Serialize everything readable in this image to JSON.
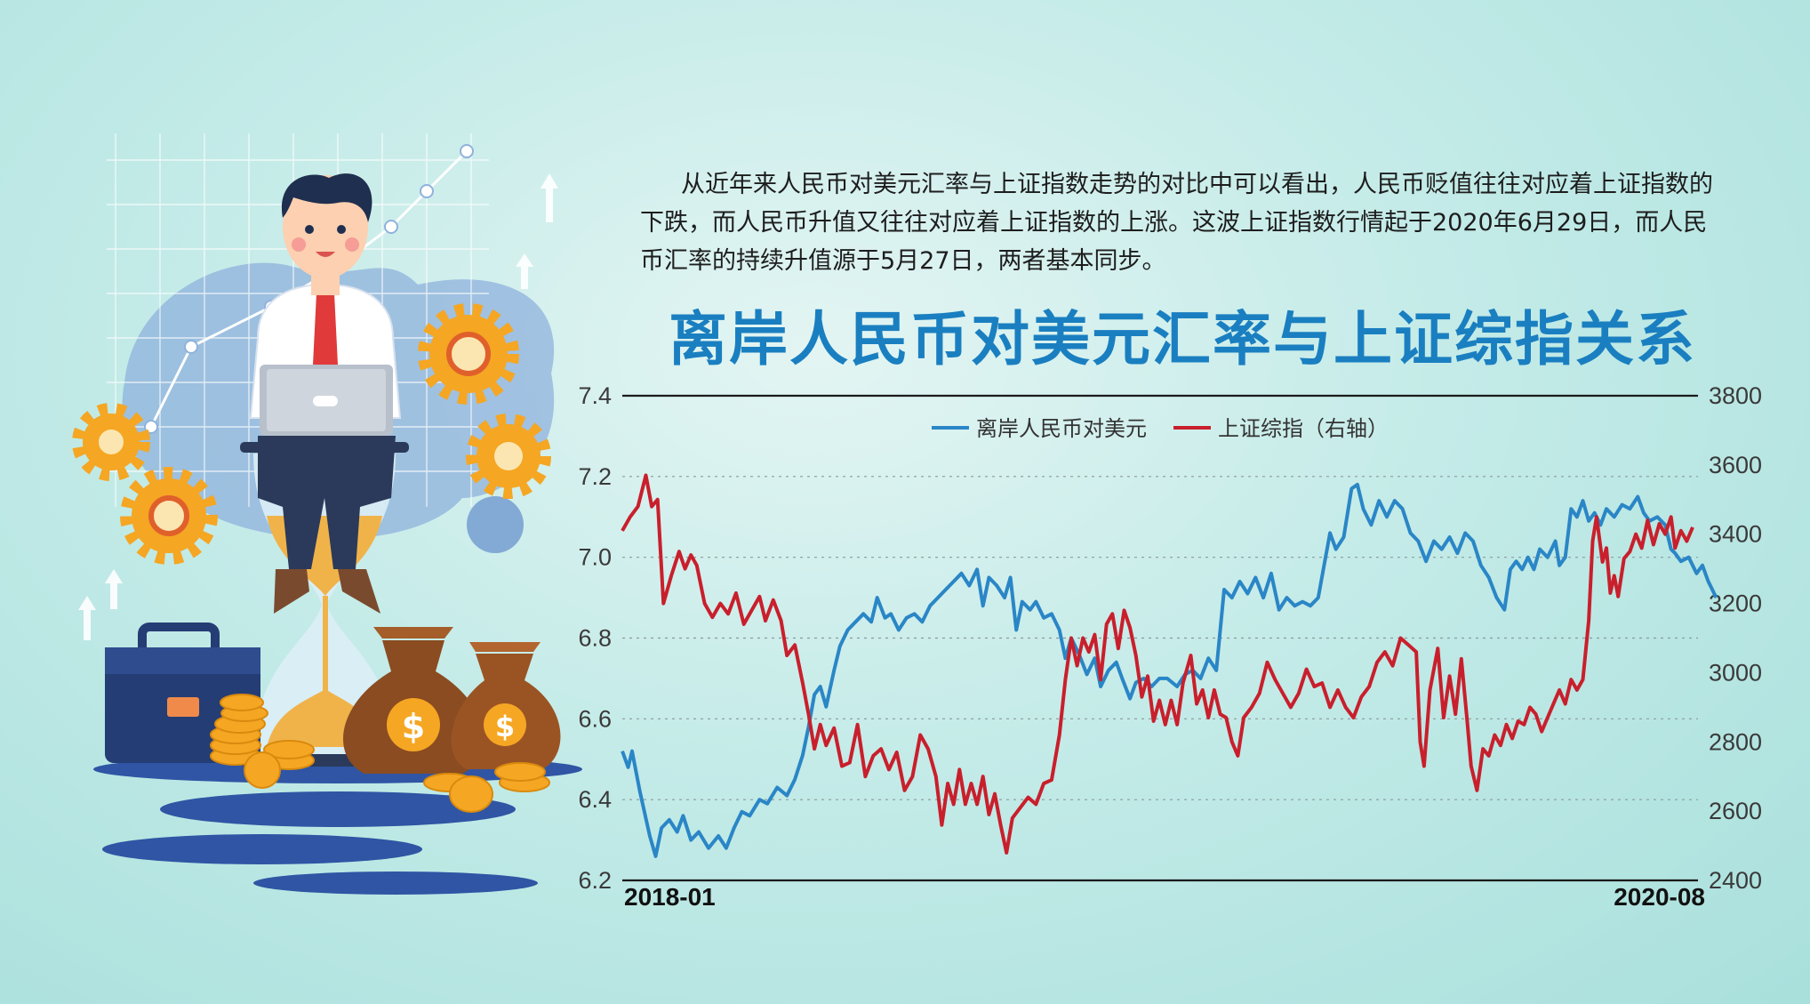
{
  "intro_text": "从近年来人民币对美元汇率与上证指数走势的对比中可以看出，人民币贬值往往对应着上证指数的下跌，而人民币升值又往往对应着上证指数的上涨。这波上证指数行情起于2020年6月29日，而人民币汇率的持续升值源于5月27日，两者基本同步。",
  "chart_data": {
    "type": "line",
    "title": "离岸人民币对美元汇率与上证综指关系",
    "x_start_label": "2018-01",
    "x_end_label": "2020-08",
    "left_axis": {
      "ticks": [
        "7.4",
        "7.2",
        "7.0",
        "6.8",
        "6.6",
        "6.4",
        "6.2"
      ],
      "range": [
        6.2,
        7.4
      ]
    },
    "right_axis": {
      "ticks": [
        "3800",
        "3600",
        "3400",
        "3200",
        "3000",
        "2800",
        "2600",
        "2400"
      ],
      "range": [
        2400,
        3800
      ]
    },
    "legend_placement": "top-center",
    "colors": {
      "cnh": "#2a86c6",
      "sse": "#c91f2c"
    },
    "series": [
      {
        "name": "离岸人民币对美元",
        "axis": "left",
        "values": [
          [
            0,
            6.52
          ],
          [
            3,
            6.48
          ],
          [
            5,
            6.52
          ],
          [
            9,
            6.42
          ],
          [
            14,
            6.31
          ],
          [
            17,
            6.26
          ],
          [
            20,
            6.33
          ],
          [
            24,
            6.35
          ],
          [
            28,
            6.32
          ],
          [
            31,
            6.36
          ],
          [
            35,
            6.3
          ],
          [
            39,
            6.32
          ],
          [
            44,
            6.28
          ],
          [
            49,
            6.31
          ],
          [
            53,
            6.28
          ],
          [
            57,
            6.33
          ],
          [
            61,
            6.37
          ],
          [
            65,
            6.36
          ],
          [
            70,
            6.4
          ],
          [
            74,
            6.39
          ],
          [
            79,
            6.43
          ],
          [
            84,
            6.41
          ],
          [
            88,
            6.45
          ],
          [
            92,
            6.51
          ],
          [
            95,
            6.58
          ],
          [
            98,
            6.66
          ],
          [
            101,
            6.68
          ],
          [
            104,
            6.63
          ],
          [
            108,
            6.72
          ],
          [
            111,
            6.78
          ],
          [
            115,
            6.82
          ],
          [
            119,
            6.84
          ],
          [
            123,
            6.86
          ],
          [
            127,
            6.84
          ],
          [
            130,
            6.9
          ],
          [
            134,
            6.85
          ],
          [
            137,
            6.86
          ],
          [
            141,
            6.82
          ],
          [
            145,
            6.85
          ],
          [
            149,
            6.86
          ],
          [
            153,
            6.84
          ],
          [
            157,
            6.88
          ],
          [
            161,
            6.9
          ],
          [
            165,
            6.92
          ],
          [
            169,
            6.94
          ],
          [
            173,
            6.96
          ],
          [
            177,
            6.93
          ],
          [
            181,
            6.97
          ],
          [
            184,
            6.88
          ],
          [
            187,
            6.95
          ],
          [
            191,
            6.93
          ],
          [
            195,
            6.9
          ],
          [
            198,
            6.95
          ],
          [
            201,
            6.82
          ],
          [
            204,
            6.89
          ],
          [
            208,
            6.87
          ],
          [
            211,
            6.89
          ],
          [
            215,
            6.85
          ],
          [
            219,
            6.86
          ],
          [
            223,
            6.82
          ],
          [
            226,
            6.75
          ],
          [
            229,
            6.8
          ],
          [
            233,
            6.76
          ],
          [
            237,
            6.71
          ],
          [
            241,
            6.75
          ],
          [
            244,
            6.68
          ],
          [
            248,
            6.72
          ],
          [
            252,
            6.74
          ],
          [
            255,
            6.7
          ],
          [
            259,
            6.65
          ],
          [
            262,
            6.69
          ],
          [
            266,
            6.7
          ],
          [
            270,
            6.68
          ],
          [
            274,
            6.7
          ],
          [
            278,
            6.7
          ],
          [
            283,
            6.68
          ],
          [
            287,
            6.71
          ],
          [
            291,
            6.72
          ],
          [
            295,
            6.7
          ],
          [
            299,
            6.75
          ],
          [
            303,
            6.72
          ],
          [
            307,
            6.92
          ],
          [
            311,
            6.9
          ],
          [
            315,
            6.94
          ],
          [
            319,
            6.91
          ],
          [
            323,
            6.95
          ],
          [
            327,
            6.9
          ],
          [
            331,
            6.96
          ],
          [
            335,
            6.87
          ],
          [
            339,
            6.9
          ],
          [
            343,
            6.88
          ],
          [
            347,
            6.89
          ],
          [
            351,
            6.88
          ],
          [
            355,
            6.9
          ],
          [
            358,
            6.98
          ],
          [
            361,
            7.06
          ],
          [
            364,
            7.02
          ],
          [
            368,
            7.05
          ],
          [
            372,
            7.17
          ],
          [
            375,
            7.18
          ],
          [
            378,
            7.12
          ],
          [
            382,
            7.08
          ],
          [
            386,
            7.14
          ],
          [
            390,
            7.1
          ],
          [
            394,
            7.14
          ],
          [
            398,
            7.12
          ],
          [
            402,
            7.06
          ],
          [
            406,
            7.04
          ],
          [
            410,
            6.99
          ],
          [
            414,
            7.04
          ],
          [
            418,
            7.02
          ],
          [
            422,
            7.05
          ],
          [
            426,
            7.01
          ],
          [
            430,
            7.06
          ],
          [
            434,
            7.04
          ],
          [
            438,
            6.98
          ],
          [
            442,
            6.95
          ],
          [
            446,
            6.9
          ],
          [
            450,
            6.87
          ],
          [
            453,
            6.97
          ],
          [
            456,
            6.99
          ],
          [
            459,
            6.97
          ],
          [
            462,
            7.0
          ],
          [
            465,
            6.97
          ],
          [
            468,
            7.02
          ],
          [
            472,
            7.0
          ],
          [
            476,
            7.04
          ],
          [
            478,
            6.98
          ],
          [
            481,
            7.0
          ],
          [
            484,
            7.12
          ],
          [
            487,
            7.1
          ],
          [
            490,
            7.14
          ],
          [
            493,
            7.09
          ],
          [
            496,
            7.11
          ],
          [
            499,
            7.08
          ],
          [
            502,
            7.12
          ],
          [
            506,
            7.1
          ],
          [
            510,
            7.13
          ],
          [
            514,
            7.12
          ],
          [
            518,
            7.15
          ],
          [
            521,
            7.11
          ],
          [
            524,
            7.09
          ],
          [
            528,
            7.1
          ],
          [
            532,
            7.08
          ],
          [
            535,
            7.02
          ],
          [
            537,
            7.01
          ],
          [
            540,
            6.99
          ],
          [
            544,
            7.0
          ],
          [
            548,
            6.96
          ],
          [
            551,
            6.98
          ],
          [
            554,
            6.94
          ],
          [
            556,
            6.92
          ],
          [
            558,
            6.9
          ]
        ]
      },
      {
        "name": "上证综指（右轴）",
        "axis": "right",
        "values": [
          [
            0,
            3410
          ],
          [
            4,
            3450
          ],
          [
            8,
            3480
          ],
          [
            12,
            3570
          ],
          [
            15,
            3480
          ],
          [
            18,
            3500
          ],
          [
            21,
            3200
          ],
          [
            25,
            3280
          ],
          [
            29,
            3350
          ],
          [
            32,
            3300
          ],
          [
            35,
            3340
          ],
          [
            38,
            3310
          ],
          [
            42,
            3200
          ],
          [
            46,
            3160
          ],
          [
            50,
            3200
          ],
          [
            54,
            3170
          ],
          [
            58,
            3230
          ],
          [
            62,
            3140
          ],
          [
            66,
            3180
          ],
          [
            70,
            3220
          ],
          [
            73,
            3150
          ],
          [
            77,
            3210
          ],
          [
            81,
            3150
          ],
          [
            84,
            3050
          ],
          [
            88,
            3080
          ],
          [
            92,
            2970
          ],
          [
            95,
            2880
          ],
          [
            98,
            2780
          ],
          [
            101,
            2850
          ],
          [
            104,
            2790
          ],
          [
            108,
            2840
          ],
          [
            112,
            2730
          ],
          [
            116,
            2740
          ],
          [
            120,
            2850
          ],
          [
            124,
            2700
          ],
          [
            128,
            2760
          ],
          [
            132,
            2780
          ],
          [
            136,
            2720
          ],
          [
            140,
            2770
          ],
          [
            144,
            2660
          ],
          [
            148,
            2700
          ],
          [
            152,
            2820
          ],
          [
            156,
            2780
          ],
          [
            160,
            2700
          ],
          [
            163,
            2560
          ],
          [
            166,
            2680
          ],
          [
            169,
            2620
          ],
          [
            172,
            2720
          ],
          [
            175,
            2620
          ],
          [
            178,
            2680
          ],
          [
            181,
            2620
          ],
          [
            184,
            2700
          ],
          [
            187,
            2590
          ],
          [
            190,
            2650
          ],
          [
            193,
            2560
          ],
          [
            196,
            2480
          ],
          [
            199,
            2580
          ],
          [
            203,
            2610
          ],
          [
            207,
            2640
          ],
          [
            211,
            2620
          ],
          [
            215,
            2680
          ],
          [
            219,
            2690
          ],
          [
            223,
            2820
          ],
          [
            226,
            2980
          ],
          [
            229,
            3100
          ],
          [
            232,
            3020
          ],
          [
            235,
            3100
          ],
          [
            238,
            3060
          ],
          [
            241,
            3110
          ],
          [
            244,
            2980
          ],
          [
            247,
            3140
          ],
          [
            250,
            3170
          ],
          [
            253,
            3070
          ],
          [
            256,
            3180
          ],
          [
            259,
            3130
          ],
          [
            262,
            3050
          ],
          [
            265,
            2930
          ],
          [
            268,
            2990
          ],
          [
            271,
            2860
          ],
          [
            274,
            2920
          ],
          [
            277,
            2850
          ],
          [
            280,
            2920
          ],
          [
            283,
            2850
          ],
          [
            286,
            2970
          ],
          [
            290,
            3050
          ],
          [
            293,
            2910
          ],
          [
            296,
            2950
          ],
          [
            299,
            2870
          ],
          [
            302,
            2950
          ],
          [
            305,
            2880
          ],
          [
            308,
            2870
          ],
          [
            311,
            2800
          ],
          [
            314,
            2760
          ],
          [
            317,
            2870
          ],
          [
            321,
            2900
          ],
          [
            325,
            2940
          ],
          [
            329,
            3030
          ],
          [
            333,
            2980
          ],
          [
            337,
            2940
          ],
          [
            341,
            2900
          ],
          [
            345,
            2940
          ],
          [
            349,
            3010
          ],
          [
            353,
            2960
          ],
          [
            357,
            2970
          ],
          [
            361,
            2900
          ],
          [
            365,
            2950
          ],
          [
            369,
            2900
          ],
          [
            373,
            2870
          ],
          [
            377,
            2930
          ],
          [
            381,
            2960
          ],
          [
            385,
            3030
          ],
          [
            389,
            3060
          ],
          [
            393,
            3020
          ],
          [
            397,
            3100
          ],
          [
            401,
            3080
          ],
          [
            405,
            3060
          ],
          [
            407,
            2800
          ],
          [
            409,
            2730
          ],
          [
            412,
            2950
          ],
          [
            416,
            3070
          ],
          [
            419,
            2870
          ],
          [
            422,
            2990
          ],
          [
            425,
            2880
          ],
          [
            428,
            3040
          ],
          [
            431,
            2860
          ],
          [
            433,
            2730
          ],
          [
            436,
            2660
          ],
          [
            439,
            2780
          ],
          [
            442,
            2760
          ],
          [
            445,
            2820
          ],
          [
            448,
            2790
          ],
          [
            451,
            2850
          ],
          [
            454,
            2810
          ],
          [
            457,
            2860
          ],
          [
            460,
            2850
          ],
          [
            463,
            2900
          ],
          [
            466,
            2880
          ],
          [
            469,
            2830
          ],
          [
            472,
            2870
          ],
          [
            475,
            2910
          ],
          [
            478,
            2950
          ],
          [
            481,
            2910
          ],
          [
            484,
            2980
          ],
          [
            487,
            2950
          ],
          [
            490,
            2980
          ],
          [
            493,
            3150
          ],
          [
            495,
            3380
          ],
          [
            497,
            3450
          ],
          [
            500,
            3320
          ],
          [
            502,
            3360
          ],
          [
            504,
            3230
          ],
          [
            506,
            3280
          ],
          [
            508,
            3220
          ],
          [
            511,
            3330
          ],
          [
            514,
            3350
          ],
          [
            517,
            3400
          ],
          [
            520,
            3360
          ],
          [
            523,
            3440
          ],
          [
            526,
            3370
          ],
          [
            529,
            3430
          ],
          [
            532,
            3400
          ],
          [
            535,
            3450
          ],
          [
            537,
            3360
          ],
          [
            540,
            3410
          ],
          [
            543,
            3380
          ],
          [
            546,
            3420
          ]
        ]
      }
    ]
  }
}
